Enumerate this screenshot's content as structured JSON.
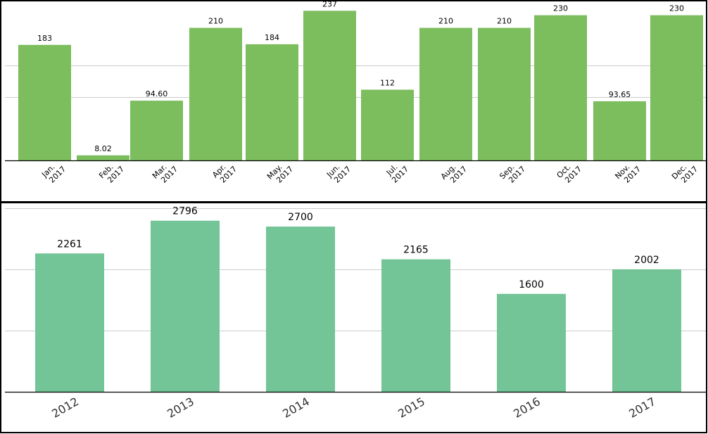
{
  "colors": {
    "monthly_bar": "#7cbd5e",
    "yearly_bar": "#73c496",
    "grid": "#cccccc",
    "axis": "#000000",
    "frame": "#000000",
    "text": "#000000",
    "year_tick_text": "#333333"
  },
  "chart_data": [
    {
      "type": "bar",
      "title": "",
      "xlabel": "",
      "ylabel": "",
      "grid": true,
      "categories": [
        "Jan. 2017",
        "Feb. 2017",
        "Mar. 2017",
        "Apr. 2017",
        "May. 2017",
        "Jun. 2017",
        "Jul. 2017",
        "Aug. 2017",
        "Sep. 2017",
        "Oct. 2017",
        "Nov. 2017",
        "Dec. 2017"
      ],
      "tick_labels": [
        [
          "Jan.",
          "2017"
        ],
        [
          "Feb.",
          "2017"
        ],
        [
          "Mar.",
          "2017"
        ],
        [
          "Apr.",
          "2017"
        ],
        [
          "May.",
          "2017"
        ],
        [
          "Jun.",
          "2017"
        ],
        [
          "Jul.",
          "2017"
        ],
        [
          "Aug.",
          "2017"
        ],
        [
          "Sep.",
          "2017"
        ],
        [
          "Oct.",
          "2017"
        ],
        [
          "Nov.",
          "2017"
        ],
        [
          "Dec.",
          "2017"
        ]
      ],
      "values": [
        183,
        8.02,
        94.6,
        210,
        184,
        237,
        112,
        210,
        210,
        230,
        93.65,
        230
      ],
      "data_labels": [
        "183",
        "8.02",
        "94.60",
        "210",
        "184",
        "237",
        "112",
        "210",
        "210",
        "230",
        "93.65",
        "230"
      ],
      "ylim": [
        0,
        250
      ]
    },
    {
      "type": "bar",
      "title": "",
      "xlabel": "",
      "ylabel": "",
      "grid": true,
      "categories": [
        "2012",
        "2013",
        "2014",
        "2015",
        "2016",
        "2017"
      ],
      "values": [
        2261,
        2796,
        2700,
        2165,
        1600,
        2002
      ],
      "data_labels": [
        "2261",
        "2796",
        "2700",
        "2165",
        "1600",
        "2002"
      ],
      "ylim": [
        0,
        2700
      ]
    }
  ]
}
